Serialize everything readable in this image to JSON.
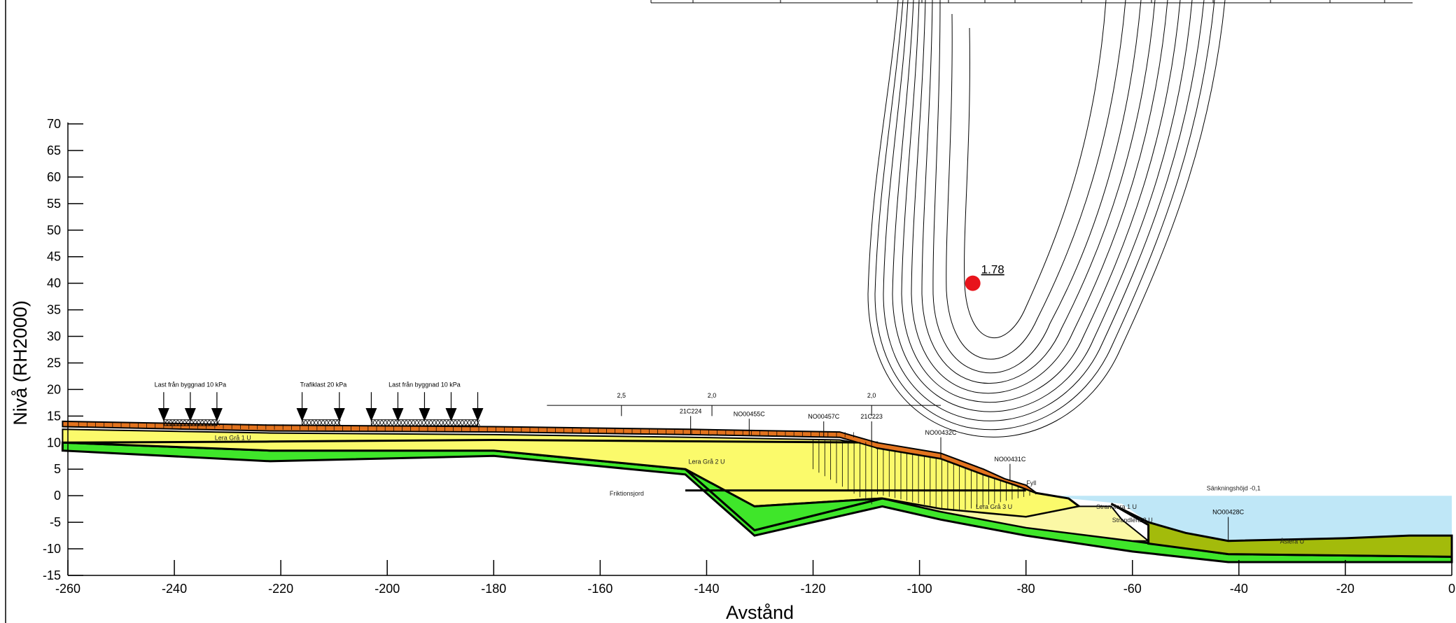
{
  "axes": {
    "xlabel": "Avstånd",
    "ylabel": "Nivå (RH2000)",
    "xlim": [
      -260,
      0
    ],
    "ylim": [
      -15,
      70
    ],
    "x_ticks": [
      -260,
      -240,
      -220,
      -200,
      -180,
      -160,
      -140,
      -120,
      -100,
      -80,
      -60,
      -40,
      -20,
      0
    ],
    "y_ticks": [
      70,
      65,
      60,
      55,
      50,
      45,
      40,
      35,
      30,
      25,
      20,
      15,
      10,
      5,
      0,
      -5,
      -10,
      -15
    ]
  },
  "safety_factor": {
    "label": "1.78",
    "x": -90,
    "y": 40,
    "color": "#e8141c"
  },
  "loads": [
    {
      "label": "Last från byggnad 10 kPa",
      "x_from": -242,
      "x_to": -232,
      "label_x": -237
    },
    {
      "label": "Trafiklast 20 kPa",
      "x_from": -216,
      "x_to": -209,
      "label_x": -212
    },
    {
      "label": "Last från byggnad 10 kPa",
      "x_from": -203,
      "x_to": -183,
      "label_x": -193
    }
  ],
  "boreholes": [
    {
      "label": "21C224",
      "x": -143
    },
    {
      "label": "NO00455C",
      "x": -132
    },
    {
      "label": "NO00457C",
      "x": -118
    },
    {
      "label": "21C223",
      "x": -109
    },
    {
      "label": "NO00432C",
      "x": -96
    },
    {
      "label": "NO00431C",
      "x": -83
    },
    {
      "label": "NO00428C",
      "x": -42
    }
  ],
  "profile_values": [
    {
      "label": "2,5",
      "x": -156
    },
    {
      "label": "2,0",
      "x": -139
    },
    {
      "label": "2,0",
      "x": -109
    }
  ],
  "soil_labels": [
    {
      "label": "Lera Grå 1 U",
      "x": -229,
      "y": 10.5
    },
    {
      "label": "Lera Grå 2 U",
      "x": -140,
      "y": 6
    },
    {
      "label": "Friktionsjord",
      "x": -155,
      "y": 0
    },
    {
      "label": "Lera Grå 3 U",
      "x": -86,
      "y": -2.5
    },
    {
      "label": "Strandlera 1 U",
      "x": -63,
      "y": -2.5
    },
    {
      "label": "Strandlera 2 U",
      "x": -60,
      "y": -5
    },
    {
      "label": "Åslera U",
      "x": -30,
      "y": -9
    },
    {
      "label": "Sänkningshöjd -0,1",
      "x": -41,
      "y": 1
    },
    {
      "label": "Fyll",
      "x": -79,
      "y": 2
    }
  ],
  "colors": {
    "fill_orange": "#e2731e",
    "clay_yellow": "#fbfa6b",
    "clay_pale": "#fbf8a5",
    "friction_green": "#3fe62a",
    "olive_clay": "#a3bb0b",
    "water_blue": "#bfe7f7",
    "outline": "#000000"
  }
}
